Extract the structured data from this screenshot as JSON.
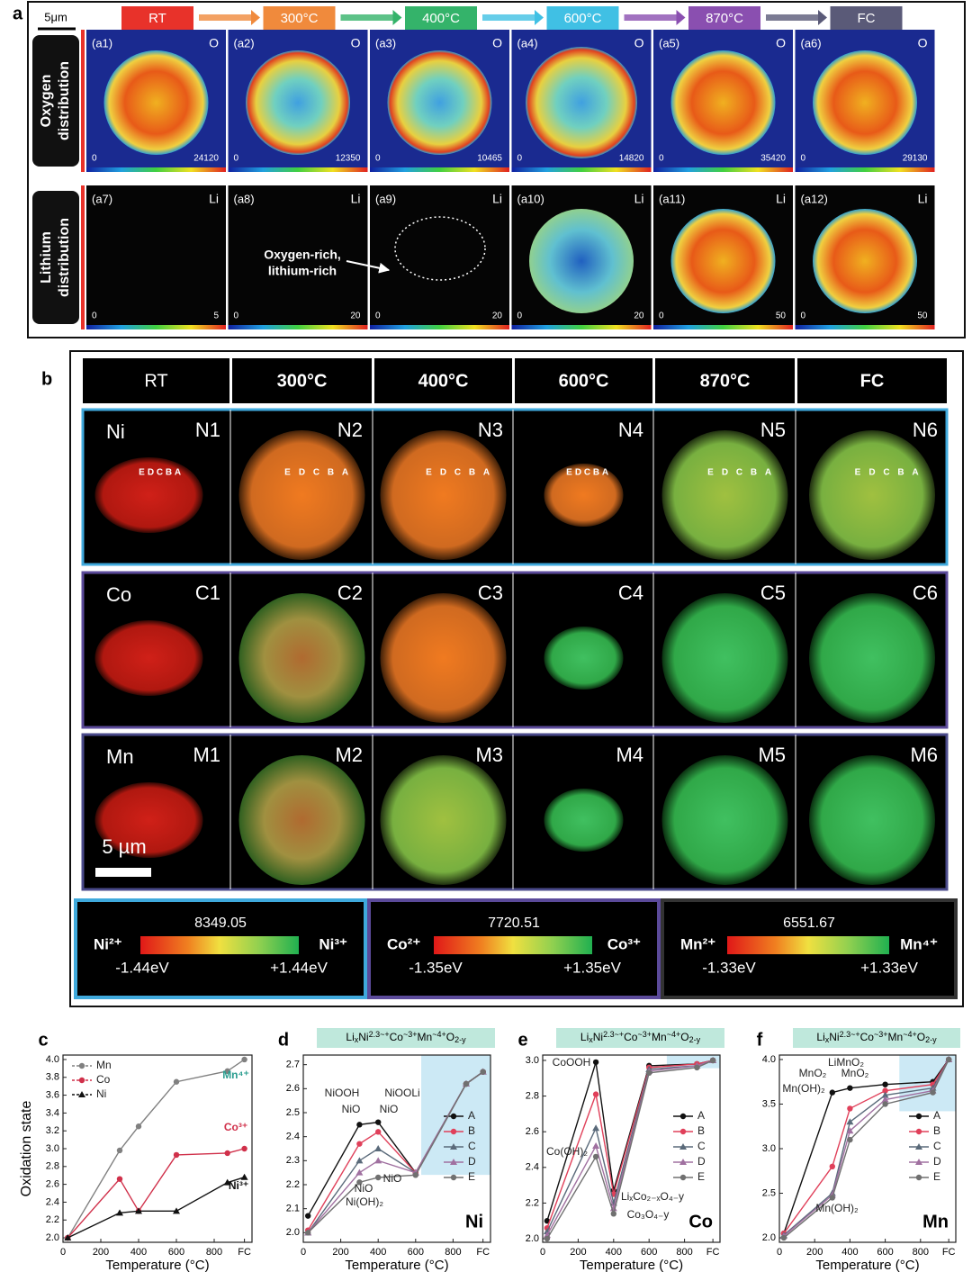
{
  "panel_a": {
    "label": "a",
    "scale_bar": "5μm",
    "stages": [
      "RT",
      "300°C",
      "400°C",
      "600°C",
      "870°C",
      "FC"
    ],
    "rows": [
      {
        "label": [
          "Oxygen",
          "distribution"
        ],
        "element": "O",
        "tiles": [
          {
            "id": "(a1)",
            "min": 0,
            "max": 24120
          },
          {
            "id": "(a2)",
            "min": 0,
            "max": 12350
          },
          {
            "id": "(a3)",
            "min": 0,
            "max": 10465
          },
          {
            "id": "(a4)",
            "min": 0,
            "max": 14820
          },
          {
            "id": "(a5)",
            "min": 0,
            "max": 35420
          },
          {
            "id": "(a6)",
            "min": 0,
            "max": 29130
          }
        ]
      },
      {
        "label": [
          "Lithium",
          "distribution"
        ],
        "element": "Li",
        "tiles": [
          {
            "id": "(a7)",
            "min": 0,
            "max": 5
          },
          {
            "id": "(a8)",
            "min": 0,
            "max": 20
          },
          {
            "id": "(a9)",
            "min": 0,
            "max": 20
          },
          {
            "id": "(a10)",
            "min": 0,
            "max": 20
          },
          {
            "id": "(a11)",
            "min": 0,
            "max": 50
          },
          {
            "id": "(a12)",
            "min": 0,
            "max": 50
          }
        ]
      }
    ],
    "annotation": [
      "Oxygen-rich,",
      "lithium-rich"
    ]
  },
  "panel_b": {
    "label": "b",
    "headers": [
      "RT",
      "300°C",
      "400°C",
      "600°C",
      "870°C",
      "FC"
    ],
    "scale_bar": "5 µm",
    "probe_points": [
      "E",
      "D",
      "C",
      "B",
      "A"
    ],
    "rows": [
      {
        "element": "Ni",
        "ids": [
          "N1",
          "N2",
          "N3",
          "N4",
          "N5",
          "N6"
        ]
      },
      {
        "element": "Co",
        "ids": [
          "C1",
          "C2",
          "C3",
          "C4",
          "C5",
          "C6"
        ]
      },
      {
        "element": "Mn",
        "ids": [
          "M1",
          "M2",
          "M3",
          "M4",
          "M5",
          "M6"
        ]
      }
    ],
    "colorbars": [
      {
        "energy": 8349.05,
        "left": "Ni²⁺",
        "right": "Ni³⁺",
        "low": "-1.44eV",
        "high": "+1.44eV"
      },
      {
        "energy": 7720.51,
        "left": "Co²⁺",
        "right": "Co³⁺",
        "low": "-1.35eV",
        "high": "+1.35eV"
      },
      {
        "energy": 6551.67,
        "left": "Mn²⁺",
        "right": "Mn⁴⁺",
        "low": "-1.33eV",
        "high": "+1.33eV"
      }
    ]
  },
  "chart_data": [
    {
      "type": "line",
      "label": "c",
      "ylabel": "Oxidation state",
      "xlabel": "Temperature (°C)",
      "legend": "upper left",
      "x": [
        25,
        300,
        400,
        600,
        870,
        960
      ],
      "xlim": [
        0,
        1000
      ],
      "xticks": [
        0,
        200,
        400,
        600,
        800,
        {
          "value": 960,
          "label": "FC"
        }
      ],
      "ylim": [
        1.95,
        4.05
      ],
      "yticks": [
        {
          "value": 2,
          "label": "2.0"
        },
        2.2,
        2.4,
        2.6,
        2.8,
        {
          "value": 3,
          "label": "3.0"
        },
        3.2,
        3.4,
        3.6,
        3.8,
        {
          "value": 4,
          "label": "4.0"
        }
      ],
      "series": [
        {
          "name": "Mn",
          "color": "#808080",
          "marker": "circle",
          "values": [
            2.0,
            2.98,
            3.25,
            3.75,
            3.87,
            4.0
          ]
        },
        {
          "name": "Co",
          "color": "#d0304a",
          "marker": "circle",
          "values": [
            2.0,
            2.66,
            2.3,
            2.93,
            2.95,
            3.0
          ]
        },
        {
          "name": "Ni",
          "color": "#111111",
          "marker": "triangle",
          "values": [
            2.0,
            2.28,
            2.3,
            2.3,
            2.62,
            2.68
          ]
        }
      ],
      "annotations": [
        {
          "text": "Mn⁴⁺",
          "color": "#2a9d8f"
        },
        {
          "text": "Co³⁺",
          "color": "#d0304a"
        },
        {
          "text": "Ni³⁺",
          "color": "#111111"
        }
      ]
    },
    {
      "type": "line",
      "label": "d",
      "xlabel": "Temperature (°C)",
      "legend": "center right",
      "element": "Ni",
      "formula": [
        {
          "text": "Li"
        },
        {
          "text": "x",
          "shift": "sub"
        },
        {
          "text": "Ni"
        },
        {
          "text": "2.3~+",
          "shift": "sup"
        },
        {
          "text": "Co"
        },
        {
          "text": "~3+",
          "shift": "sup"
        },
        {
          "text": "Mn"
        },
        {
          "text": "~4+",
          "shift": "sup"
        },
        {
          "text": "O"
        },
        {
          "text": "2-y",
          "shift": "sub"
        }
      ],
      "x": [
        25,
        300,
        400,
        600,
        870,
        960
      ],
      "xlim": [
        0,
        1000
      ],
      "xticks": [
        0,
        200,
        400,
        600,
        800,
        {
          "value": 960,
          "label": "FC"
        }
      ],
      "ylim": [
        1.96,
        2.74
      ],
      "yticks": [
        {
          "value": 2,
          "label": "2.0"
        },
        2.1,
        2.2,
        2.3,
        2.4,
        2.5,
        2.6,
        2.7
      ],
      "series": [
        {
          "name": "A",
          "color": "#111111",
          "marker": "circle",
          "values": [
            2.07,
            2.45,
            2.46,
            2.25,
            2.62,
            2.67
          ]
        },
        {
          "name": "B",
          "color": "#e0405a",
          "marker": "circle",
          "values": [
            2.01,
            2.37,
            2.42,
            2.25,
            2.62,
            2.67
          ]
        },
        {
          "name": "C",
          "color": "#5a6a7a",
          "marker": "triangle",
          "values": [
            2.0,
            2.3,
            2.35,
            2.25,
            2.62,
            2.67
          ]
        },
        {
          "name": "D",
          "color": "#a070a0",
          "marker": "triangle",
          "values": [
            2.0,
            2.25,
            2.3,
            2.25,
            2.62,
            2.67
          ]
        },
        {
          "name": "E",
          "color": "#707070",
          "marker": "circle",
          "values": [
            2.0,
            2.21,
            2.23,
            2.24,
            2.62,
            2.67
          ]
        }
      ],
      "annotations": [
        {
          "text": "NiOOH"
        },
        {
          "text": "NiO"
        },
        {
          "text": "NiOOLi"
        },
        {
          "text": "NiO"
        },
        {
          "text": "NiO"
        },
        {
          "text": "NiO"
        },
        {
          "text": "Ni(OH)₂"
        }
      ]
    },
    {
      "type": "line",
      "label": "e",
      "xlabel": "Temperature (°C)",
      "legend": "center right",
      "element": "Co",
      "formula": [
        {
          "text": "Li"
        },
        {
          "text": "x",
          "shift": "sub"
        },
        {
          "text": "Ni"
        },
        {
          "text": "2.3~+",
          "shift": "sup"
        },
        {
          "text": "Co"
        },
        {
          "text": "~3+",
          "shift": "sup"
        },
        {
          "text": "Mn"
        },
        {
          "text": "~4+",
          "shift": "sup"
        },
        {
          "text": "O"
        },
        {
          "text": "2-y",
          "shift": "sub"
        }
      ],
      "x": [
        25,
        300,
        400,
        600,
        870,
        960
      ],
      "xlim": [
        0,
        1000
      ],
      "xticks": [
        0,
        200,
        400,
        600,
        800,
        {
          "value": 960,
          "label": "FC"
        }
      ],
      "ylim": [
        1.98,
        3.03
      ],
      "yticks": [
        {
          "value": 2,
          "label": "2.0"
        },
        2.2,
        2.4,
        2.6,
        2.8,
        {
          "value": 3,
          "label": "3.0"
        }
      ],
      "series": [
        {
          "name": "A",
          "color": "#111111",
          "marker": "circle",
          "values": [
            2.1,
            2.99,
            2.27,
            2.97,
            2.98,
            3.0
          ]
        },
        {
          "name": "B",
          "color": "#e0405a",
          "marker": "circle",
          "values": [
            2.06,
            2.81,
            2.25,
            2.96,
            2.98,
            3.0
          ]
        },
        {
          "name": "C",
          "color": "#5a6a7a",
          "marker": "triangle",
          "values": [
            2.04,
            2.62,
            2.2,
            2.95,
            2.97,
            3.0
          ]
        },
        {
          "name": "D",
          "color": "#a070a0",
          "marker": "triangle",
          "values": [
            2.02,
            2.52,
            2.17,
            2.94,
            2.97,
            3.0
          ]
        },
        {
          "name": "E",
          "color": "#707070",
          "marker": "circle",
          "values": [
            2.0,
            2.46,
            2.14,
            2.93,
            2.96,
            3.0
          ]
        }
      ],
      "annotations": [
        {
          "text": "CoOOH"
        },
        {
          "text": "Co(OH)₂"
        },
        {
          "text": "LiₓCo₂₋ₓO₄₋y"
        },
        {
          "text": "Co₃O₄₋y"
        }
      ]
    },
    {
      "type": "line",
      "label": "f",
      "xlabel": "Temperature (°C)",
      "legend": "center right",
      "element": "Mn",
      "formula": [
        {
          "text": "Li"
        },
        {
          "text": "x",
          "shift": "sub"
        },
        {
          "text": "Ni"
        },
        {
          "text": "2.3~+",
          "shift": "sup"
        },
        {
          "text": "Co"
        },
        {
          "text": "~3+",
          "shift": "sup"
        },
        {
          "text": "Mn"
        },
        {
          "text": "~4+",
          "shift": "sup"
        },
        {
          "text": "O"
        },
        {
          "text": "2-y",
          "shift": "sub"
        }
      ],
      "x": [
        25,
        300,
        400,
        600,
        870,
        960
      ],
      "xlim": [
        0,
        1000
      ],
      "xticks": [
        0,
        200,
        400,
        600,
        800,
        {
          "value": 960,
          "label": "FC"
        }
      ],
      "ylim": [
        1.95,
        4.05
      ],
      "yticks": [
        {
          "value": 2,
          "label": "2.0"
        },
        2.5,
        {
          "value": 3,
          "label": "3.0"
        },
        3.5,
        {
          "value": 4,
          "label": "4.0"
        }
      ],
      "series": [
        {
          "name": "A",
          "color": "#111111",
          "marker": "circle",
          "values": [
            2.05,
            3.63,
            3.68,
            3.72,
            3.75,
            4.0
          ]
        },
        {
          "name": "B",
          "color": "#e0405a",
          "marker": "circle",
          "values": [
            2.05,
            2.8,
            3.45,
            3.65,
            3.72,
            4.0
          ]
        },
        {
          "name": "C",
          "color": "#5a6a7a",
          "marker": "triangle",
          "values": [
            2.03,
            2.5,
            3.3,
            3.6,
            3.68,
            4.0
          ]
        },
        {
          "name": "D",
          "color": "#a070a0",
          "marker": "triangle",
          "values": [
            2.02,
            2.48,
            3.2,
            3.55,
            3.65,
            4.0
          ]
        },
        {
          "name": "E",
          "color": "#707070",
          "marker": "circle",
          "values": [
            2.0,
            2.45,
            3.1,
            3.5,
            3.63,
            4.0
          ]
        }
      ],
      "annotations": [
        {
          "text": "LiMnO₂"
        },
        {
          "text": "MnO₂"
        },
        {
          "text": "MnO₂"
        },
        {
          "text": "Mn(OH)₂"
        },
        {
          "text": "Mn(OH)₂"
        }
      ]
    }
  ]
}
